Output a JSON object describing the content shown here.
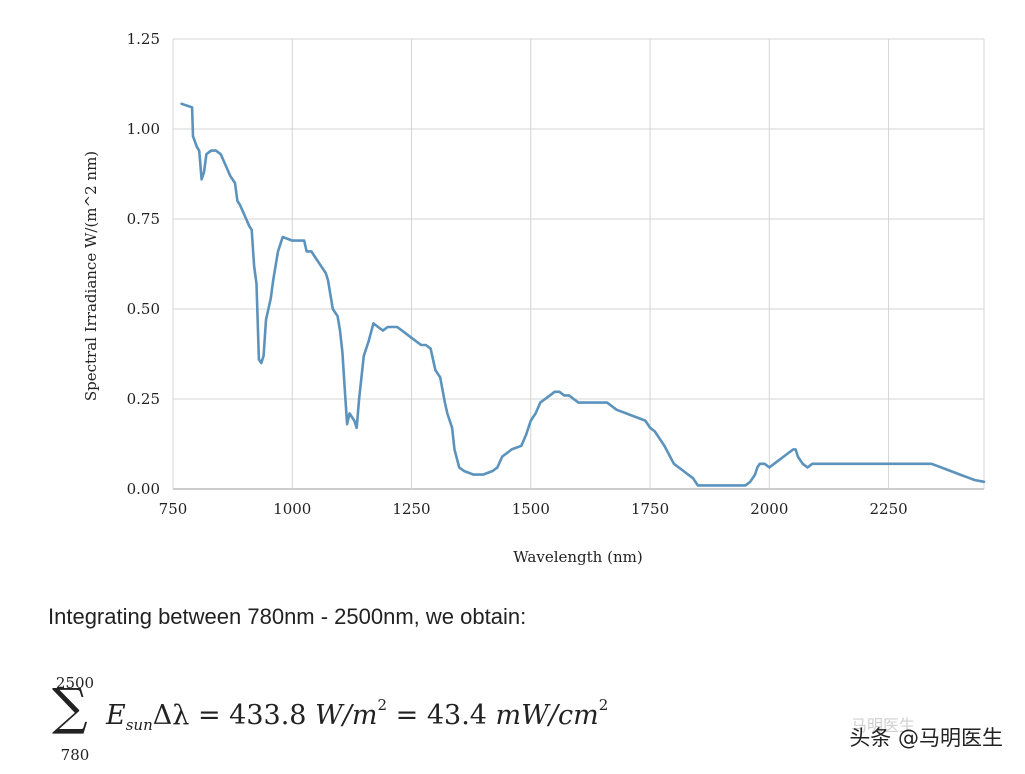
{
  "chart_data": {
    "type": "line",
    "xlabel": "Wavelength (nm)",
    "ylabel": "Spectral Irradiance W/(m^2 nm)",
    "xlim": [
      750,
      2450
    ],
    "ylim": [
      0,
      1.25
    ],
    "xticks": [
      750,
      1000,
      1250,
      1500,
      1750,
      2000,
      2250
    ],
    "xtick_labels": [
      "750",
      "1000",
      "1250",
      "1500",
      "1750",
      "2000",
      "2250"
    ],
    "yticks": [
      0,
      0.25,
      0.5,
      0.75,
      1.0,
      1.25
    ],
    "ytick_labels": [
      "0.00",
      "0.25",
      "0.50",
      "0.75",
      "1.00",
      "1.25"
    ],
    "grid": true,
    "line_color": "#5b93bd",
    "series": [
      {
        "name": "Spectral Irradiance",
        "x": [
          768,
          790,
          792,
          800,
          805,
          810,
          815,
          820,
          830,
          840,
          850,
          860,
          870,
          880,
          885,
          890,
          900,
          910,
          915,
          920,
          925,
          930,
          935,
          940,
          945,
          950,
          955,
          960,
          965,
          970,
          980,
          1000,
          1025,
          1030,
          1040,
          1050,
          1060,
          1070,
          1075,
          1085,
          1090,
          1095,
          1100,
          1105,
          1110,
          1115,
          1120,
          1130,
          1135,
          1140,
          1150,
          1160,
          1170,
          1180,
          1190,
          1200,
          1210,
          1220,
          1230,
          1250,
          1270,
          1280,
          1290,
          1300,
          1310,
          1320,
          1325,
          1335,
          1340,
          1350,
          1360,
          1380,
          1390,
          1400,
          1420,
          1430,
          1440,
          1460,
          1480,
          1490,
          1500,
          1510,
          1520,
          1540,
          1550,
          1560,
          1570,
          1580,
          1590,
          1600,
          1650,
          1660,
          1680,
          1700,
          1720,
          1740,
          1750,
          1760,
          1780,
          1800,
          1820,
          1830,
          1840,
          1850,
          1870,
          1950,
          1960,
          1970,
          1975,
          1980,
          1990,
          2000,
          2010,
          2020,
          2030,
          2040,
          2050,
          2055,
          2060,
          2070,
          2080,
          2090,
          2330,
          2340,
          2360,
          2380,
          2400,
          2420,
          2430,
          2450
        ],
        "values": [
          1.07,
          1.06,
          0.98,
          0.95,
          0.94,
          0.86,
          0.88,
          0.93,
          0.94,
          0.94,
          0.93,
          0.9,
          0.87,
          0.85,
          0.8,
          0.79,
          0.76,
          0.73,
          0.72,
          0.62,
          0.57,
          0.36,
          0.35,
          0.37,
          0.47,
          0.5,
          0.53,
          0.58,
          0.62,
          0.66,
          0.7,
          0.69,
          0.69,
          0.66,
          0.66,
          0.64,
          0.62,
          0.6,
          0.58,
          0.5,
          0.49,
          0.48,
          0.44,
          0.38,
          0.28,
          0.18,
          0.21,
          0.19,
          0.17,
          0.25,
          0.37,
          0.41,
          0.46,
          0.45,
          0.44,
          0.45,
          0.45,
          0.45,
          0.44,
          0.42,
          0.4,
          0.4,
          0.39,
          0.33,
          0.31,
          0.24,
          0.21,
          0.17,
          0.11,
          0.06,
          0.05,
          0.04,
          0.04,
          0.04,
          0.05,
          0.06,
          0.09,
          0.11,
          0.12,
          0.15,
          0.19,
          0.21,
          0.24,
          0.26,
          0.27,
          0.27,
          0.26,
          0.26,
          0.25,
          0.24,
          0.24,
          0.24,
          0.22,
          0.21,
          0.2,
          0.19,
          0.17,
          0.16,
          0.12,
          0.07,
          0.05,
          0.04,
          0.03,
          0.01,
          0.01,
          0.01,
          0.02,
          0.04,
          0.06,
          0.07,
          0.07,
          0.06,
          0.07,
          0.08,
          0.09,
          0.1,
          0.11,
          0.11,
          0.09,
          0.07,
          0.06,
          0.07,
          0.07,
          0.07,
          0.06,
          0.05,
          0.04,
          0.03,
          0.025,
          0.02
        ]
      }
    ]
  },
  "caption": "Integrating between 780nm - 2500nm, we obtain:",
  "formula": {
    "sum_upper": "2500",
    "sum_symbol": "∑",
    "sum_lower": "780",
    "term": "E",
    "term_sub": "sun",
    "delta_lambda": "Δλ",
    "eq1": " = 433.8 ",
    "unit1": "W/m",
    "unit1_exp": "2",
    "eq2": " = 43.4 ",
    "unit2": "mW/cm",
    "unit2_exp": "2"
  },
  "watermark": {
    "text": "头条 @马明医生",
    "faded_text": "马明医生"
  }
}
